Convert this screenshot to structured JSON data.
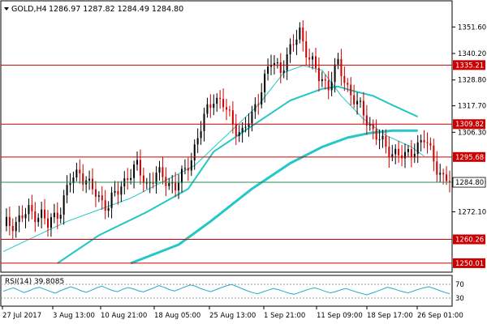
{
  "header": {
    "symbol": "GOLD,H4",
    "ohlc": "1286.97 1287.82 1284.49 1284.80"
  },
  "colors": {
    "background": "#ffffff",
    "frame": "#000000",
    "bull_candle": "#000000",
    "bear_candle": "#cc0000",
    "level_line": "#cc0000",
    "ma_line": "#22c8c8",
    "current_price_line": "#2e8b57",
    "rsi_line": "#2aa8c8",
    "text": "#000000"
  },
  "chart_data": {
    "type": "candlestick",
    "symbol": "GOLD",
    "timeframe": "H4",
    "ylim": [
      1246.5,
      1362.5
    ],
    "last_price": 1284.8,
    "price_ticks": [
      1351.6,
      1340.2,
      1328.8,
      1317.7,
      1306.3,
      1284.8,
      1272.1
    ],
    "levels": [
      {
        "label": "1335.21",
        "value": 1335.21
      },
      {
        "label": "1309.82",
        "value": 1309.82
      },
      {
        "label": "1295.68",
        "value": 1295.68
      },
      {
        "label": "1260.26",
        "value": 1260.26
      },
      {
        "label": "1250.01",
        "value": 1250.01
      }
    ],
    "x_labels": [
      "27 Jul 2017",
      "3 Aug 13:00",
      "10 Aug 21:00",
      "18 Aug 05:00",
      "25 Aug 13:00",
      "1 Sep 21:00",
      "11 Sep 09:00",
      "18 Sep 17:00",
      "26 Sep 01:00"
    ],
    "close_path": [
      [
        0,
        1266
      ],
      [
        4,
        1268
      ],
      [
        8,
        1272
      ],
      [
        12,
        1271
      ],
      [
        14,
        1266
      ],
      [
        18,
        1274
      ],
      [
        21,
        1285
      ],
      [
        24,
        1290
      ],
      [
        27,
        1283
      ],
      [
        30,
        1278
      ],
      [
        33,
        1275
      ],
      [
        36,
        1281
      ],
      [
        39,
        1288
      ],
      [
        42,
        1291
      ],
      [
        45,
        1284
      ],
      [
        48,
        1288
      ],
      [
        51,
        1286
      ],
      [
        54,
        1283
      ],
      [
        57,
        1289
      ],
      [
        60,
        1300
      ],
      [
        63,
        1312
      ],
      [
        66,
        1322
      ],
      [
        69,
        1318
      ],
      [
        72,
        1310
      ],
      [
        75,
        1306
      ],
      [
        78,
        1313
      ],
      [
        81,
        1326
      ],
      [
        84,
        1336
      ],
      [
        87,
        1334
      ],
      [
        90,
        1341
      ],
      [
        93,
        1350
      ],
      [
        96,
        1338
      ],
      [
        99,
        1330
      ],
      [
        102,
        1327
      ],
      [
        105,
        1335
      ],
      [
        108,
        1326
      ],
      [
        111,
        1318
      ],
      [
        114,
        1312
      ],
      [
        117,
        1305
      ],
      [
        120,
        1299
      ],
      [
        123,
        1298
      ],
      [
        126,
        1295
      ],
      [
        129,
        1300
      ],
      [
        132,
        1303
      ],
      [
        135,
        1295
      ],
      [
        138,
        1286
      ],
      [
        140,
        1285
      ]
    ],
    "series": [
      {
        "name": "MA fast",
        "values": [
          [
            0,
            1255
          ],
          [
            20,
            1268
          ],
          [
            40,
            1278
          ],
          [
            60,
            1292
          ],
          [
            70,
            1305
          ],
          [
            80,
            1318
          ],
          [
            88,
            1332
          ],
          [
            94,
            1335
          ],
          [
            100,
            1333
          ],
          [
            106,
            1322
          ],
          [
            113,
            1312
          ],
          [
            120,
            1305
          ],
          [
            128,
            1300
          ],
          [
            132,
            1296
          ]
        ]
      },
      {
        "name": "MA medium",
        "values": [
          [
            17,
            1250
          ],
          [
            30,
            1262
          ],
          [
            45,
            1272
          ],
          [
            58,
            1282
          ],
          [
            66,
            1298
          ],
          [
            78,
            1309
          ],
          [
            90,
            1320
          ],
          [
            100,
            1325
          ],
          [
            105,
            1326
          ],
          [
            110,
            1324
          ],
          [
            116,
            1322
          ],
          [
            122,
            1318
          ],
          [
            130,
            1313
          ]
        ]
      },
      {
        "name": "MA slow",
        "values": [
          [
            40,
            1250
          ],
          [
            55,
            1258
          ],
          [
            65,
            1268
          ],
          [
            78,
            1282
          ],
          [
            90,
            1293
          ],
          [
            100,
            1300
          ],
          [
            108,
            1304
          ],
          [
            115,
            1306
          ],
          [
            122,
            1307
          ],
          [
            130,
            1307
          ]
        ]
      }
    ]
  },
  "rsi": {
    "label": "RSI(14) 39.8085",
    "ticks": [
      "70",
      "30"
    ],
    "ylim": [
      0,
      100
    ],
    "values": [
      48,
      55,
      60,
      52,
      44,
      50,
      58,
      62,
      55,
      48,
      42,
      50,
      57,
      64,
      58,
      50,
      45,
      52,
      60,
      66,
      58,
      51,
      47,
      55,
      61,
      57,
      50,
      46,
      53,
      60,
      68,
      62,
      54,
      49,
      56,
      63,
      70,
      66,
      58,
      52,
      47,
      54,
      61,
      67,
      72,
      65,
      57,
      50,
      44,
      40,
      46,
      52,
      58,
      54,
      48,
      42,
      38,
      44,
      50,
      56,
      60,
      55,
      48,
      43,
      47,
      53,
      58,
      52,
      46,
      41,
      36,
      42,
      48,
      55,
      62,
      58,
      52,
      47,
      43,
      49,
      55,
      60,
      64,
      58,
      51,
      45,
      40
    ]
  }
}
